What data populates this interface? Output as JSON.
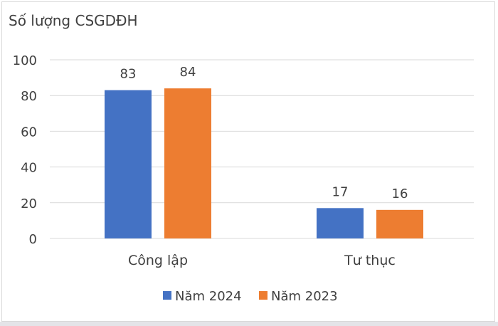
{
  "chart_data": {
    "type": "bar",
    "title": "Số lượng CSGDĐH",
    "categories": [
      "Công lập",
      "Tư thục"
    ],
    "series": [
      {
        "name": "Năm 2024",
        "values": [
          83,
          17
        ],
        "color": "#4472c4"
      },
      {
        "name": "Năm 2023",
        "values": [
          84,
          16
        ],
        "color": "#ed7d31"
      }
    ],
    "ylim": [
      0,
      100
    ],
    "yticks": [
      0,
      20,
      40,
      60,
      80,
      100
    ],
    "grid": true,
    "data_labels": true,
    "legend": "bottom"
  }
}
